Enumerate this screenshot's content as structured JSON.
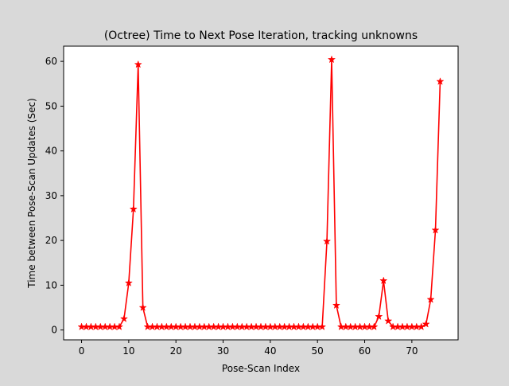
{
  "chart_data": {
    "type": "line",
    "title": "(Octree) Time to Next Pose Iteration, tracking unknowns",
    "xlabel": "Pose-Scan Index",
    "ylabel": "Time between Pose-Scan Updates (Sec)",
    "xlim": [
      -3.8,
      79.8
    ],
    "ylim": [
      -2.2,
      63.4
    ],
    "xticks": [
      0,
      10,
      20,
      30,
      40,
      50,
      60,
      70
    ],
    "yticks": [
      0,
      10,
      20,
      30,
      40,
      50,
      60
    ],
    "grid": false,
    "legend": "none",
    "series": [
      {
        "color": "#ff0000",
        "marker": "star",
        "x": [
          0,
          1,
          2,
          3,
          4,
          5,
          6,
          7,
          8,
          9,
          10,
          11,
          12,
          13,
          14,
          15,
          16,
          17,
          18,
          19,
          20,
          21,
          22,
          23,
          24,
          25,
          26,
          27,
          28,
          29,
          30,
          31,
          32,
          33,
          34,
          35,
          36,
          37,
          38,
          39,
          40,
          41,
          42,
          43,
          44,
          45,
          46,
          47,
          48,
          49,
          50,
          51,
          52,
          53,
          54,
          55,
          56,
          57,
          58,
          59,
          60,
          61,
          62,
          63,
          64,
          65,
          66,
          67,
          68,
          69,
          70,
          71,
          72,
          73,
          74,
          75,
          76
        ],
        "values": [
          0.7,
          0.7,
          0.7,
          0.7,
          0.7,
          0.7,
          0.7,
          0.7,
          0.7,
          2.5,
          10.5,
          27.0,
          59.3,
          5.0,
          0.7,
          0.7,
          0.7,
          0.7,
          0.7,
          0.7,
          0.7,
          0.7,
          0.7,
          0.7,
          0.7,
          0.7,
          0.7,
          0.7,
          0.7,
          0.7,
          0.7,
          0.7,
          0.7,
          0.7,
          0.7,
          0.7,
          0.7,
          0.7,
          0.7,
          0.7,
          0.7,
          0.7,
          0.7,
          0.7,
          0.7,
          0.7,
          0.7,
          0.7,
          0.7,
          0.7,
          0.7,
          0.7,
          19.8,
          60.4,
          5.5,
          0.7,
          0.7,
          0.7,
          0.7,
          0.7,
          0.7,
          0.7,
          0.7,
          3.0,
          11.0,
          2.0,
          0.7,
          0.7,
          0.7,
          0.7,
          0.7,
          0.7,
          0.7,
          1.3,
          6.8,
          22.3,
          55.5
        ]
      }
    ]
  }
}
